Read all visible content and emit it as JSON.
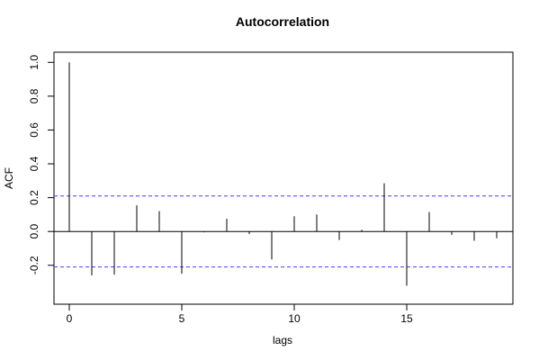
{
  "chart_data": {
    "type": "acf",
    "title": "Autocorrelation",
    "xlabel": "lags",
    "ylabel": "ACF",
    "x": [
      0,
      1,
      2,
      3,
      4,
      5,
      6,
      7,
      8,
      9,
      10,
      11,
      12,
      13,
      14,
      15,
      16,
      17,
      18,
      19
    ],
    "values": [
      1.0,
      -0.26,
      -0.255,
      0.155,
      0.12,
      -0.25,
      -0.005,
      0.075,
      -0.015,
      -0.165,
      0.09,
      0.1,
      -0.05,
      0.01,
      0.285,
      -0.32,
      0.115,
      -0.02,
      -0.055,
      -0.04
    ],
    "color": "#000000",
    "xlim": [
      -0.68,
      19.72
    ],
    "xticks": [
      0,
      5,
      10,
      15
    ],
    "ylim": [
      -0.43,
      1.06
    ],
    "yticks": [
      {
        "value": -0.2,
        "label": "-0.2"
      },
      {
        "value": 0,
        "label": "0.0"
      },
      {
        "value": 0.2,
        "label": "0.2"
      },
      {
        "value": 0.4,
        "label": "0.4"
      },
      {
        "value": 0.6,
        "label": "0.6"
      },
      {
        "value": 0.8,
        "label": "0.8"
      },
      {
        "value": 1,
        "label": "1.0"
      }
    ],
    "confidence_bounds": [
      0.21,
      -0.21
    ],
    "confidence_color": "#4040ff"
  }
}
